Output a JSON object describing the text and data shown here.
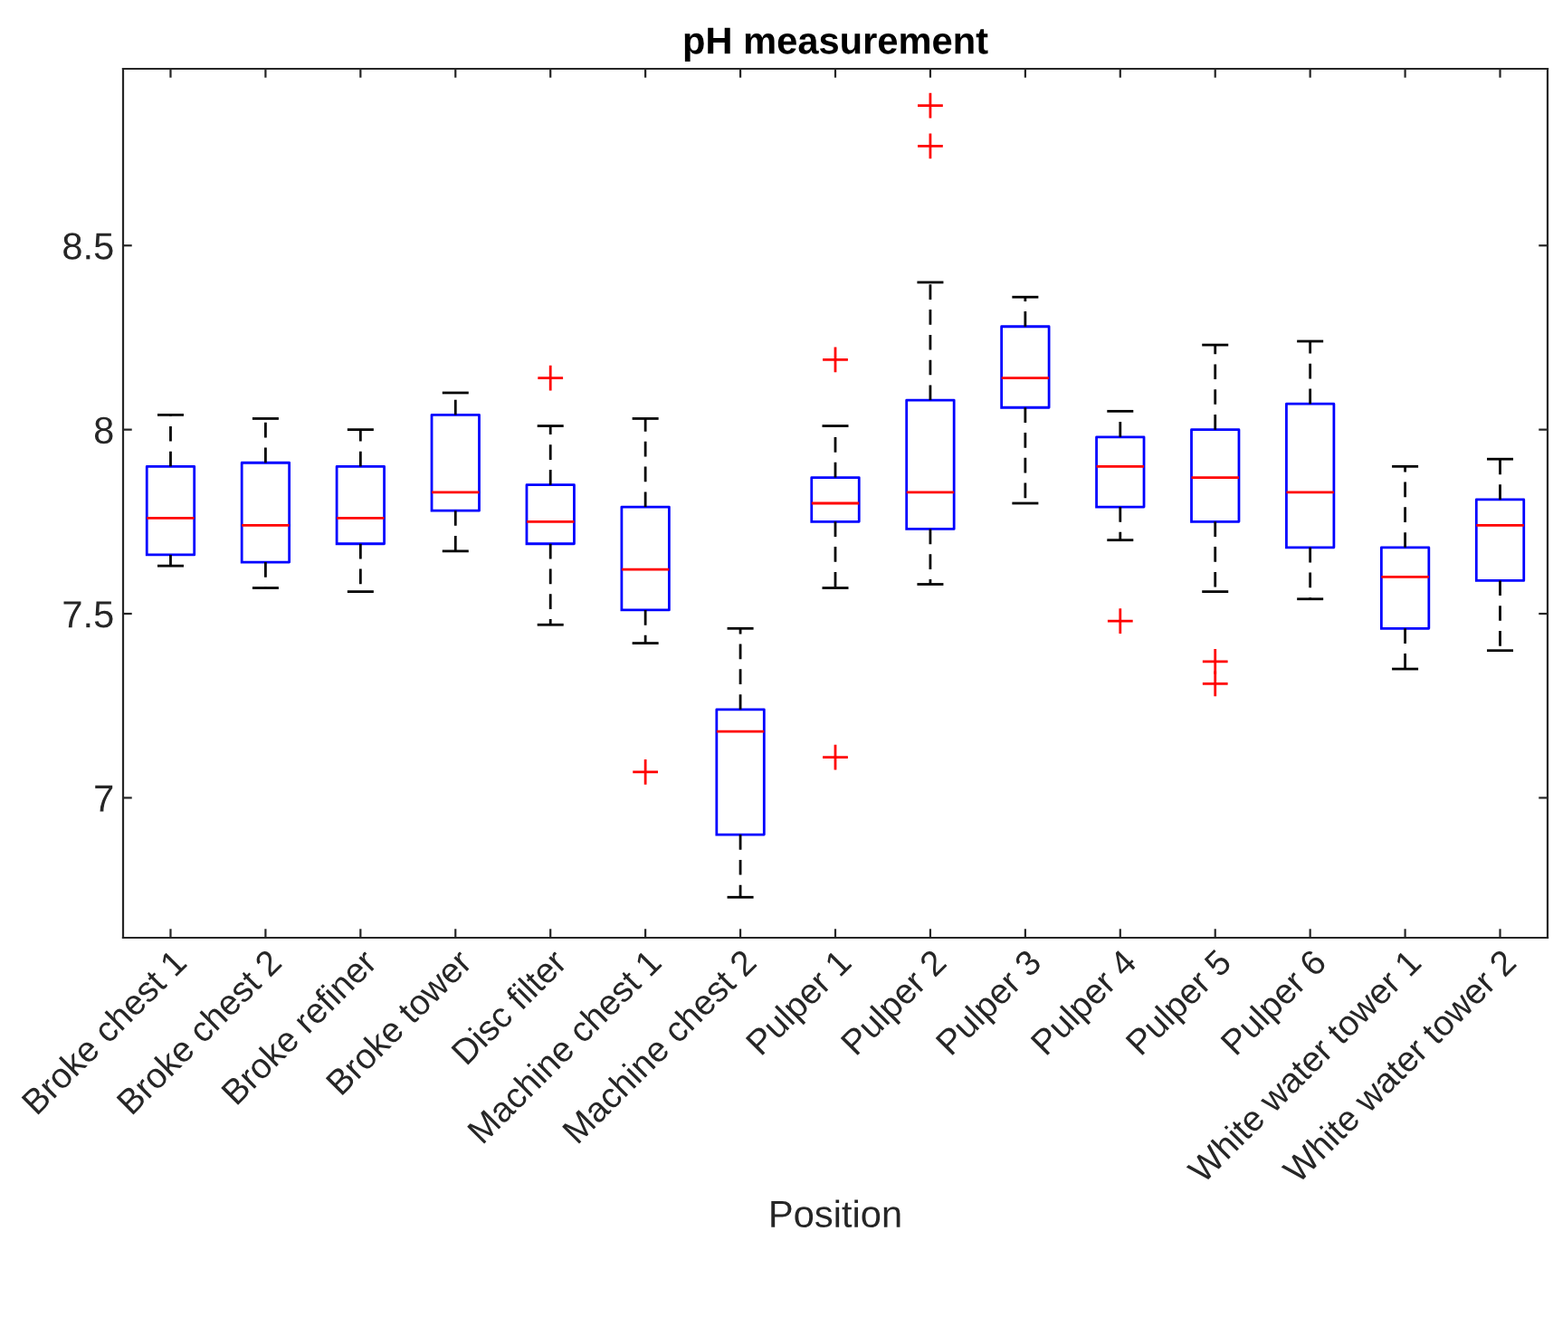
{
  "chart_data": {
    "type": "box",
    "title": "pH measurement",
    "xlabel": "Position",
    "categories": [
      "Broke chest 1",
      "Broke chest 2",
      "Broke refiner",
      "Broke tower",
      "Disc filter",
      "Machine chest 1",
      "Machine chest 2",
      "Pulper 1",
      "Pulper 2",
      "Pulper 3",
      "Pulper 4",
      "Pulper 5",
      "Pulper 6",
      "White water tower 1",
      "White water tower 2"
    ],
    "boxes": [
      {
        "low": 7.63,
        "q1": 7.66,
        "median": 7.76,
        "q3": 7.9,
        "high": 8.04
      },
      {
        "low": 7.57,
        "q1": 7.64,
        "median": 7.74,
        "q3": 7.91,
        "high": 8.03
      },
      {
        "low": 7.56,
        "q1": 7.69,
        "median": 7.76,
        "q3": 7.9,
        "high": 8.0
      },
      {
        "low": 7.67,
        "q1": 7.78,
        "median": 7.83,
        "q3": 8.04,
        "high": 8.1
      },
      {
        "low": 7.47,
        "q1": 7.69,
        "median": 7.75,
        "q3": 7.85,
        "high": 8.01,
        "outliers": [
          8.14
        ]
      },
      {
        "low": 7.42,
        "q1": 7.51,
        "median": 7.62,
        "q3": 7.79,
        "high": 8.03,
        "outliers": [
          7.07
        ]
      },
      {
        "low": 6.73,
        "q1": 6.9,
        "median": 7.18,
        "q3": 7.24,
        "high": 7.46
      },
      {
        "low": 7.57,
        "q1": 7.75,
        "median": 7.8,
        "q3": 7.87,
        "high": 8.01,
        "outliers": [
          8.19,
          7.11
        ]
      },
      {
        "low": 7.58,
        "q1": 7.73,
        "median": 7.83,
        "q3": 8.08,
        "high": 8.4,
        "outliers": [
          8.88,
          8.77
        ]
      },
      {
        "low": 7.8,
        "q1": 8.06,
        "median": 8.14,
        "q3": 8.28,
        "high": 8.36
      },
      {
        "low": 7.7,
        "q1": 7.79,
        "median": 7.9,
        "q3": 7.98,
        "high": 8.05,
        "outliers": [
          7.48
        ]
      },
      {
        "low": 7.56,
        "q1": 7.75,
        "median": 7.87,
        "q3": 8.0,
        "high": 8.23,
        "outliers": [
          7.37,
          7.31
        ]
      },
      {
        "low": 7.54,
        "q1": 7.68,
        "median": 7.83,
        "q3": 8.07,
        "high": 8.24
      },
      {
        "low": 7.35,
        "q1": 7.46,
        "median": 7.6,
        "q3": 7.68,
        "high": 7.9
      },
      {
        "low": 7.4,
        "q1": 7.59,
        "median": 7.74,
        "q3": 7.81,
        "high": 7.92
      }
    ],
    "color": "#0000ff",
    "ylim": [
      6.62,
      8.98
    ],
    "yticks": [
      7,
      7.5,
      8,
      8.5
    ],
    "grid": false,
    "legend": false
  }
}
